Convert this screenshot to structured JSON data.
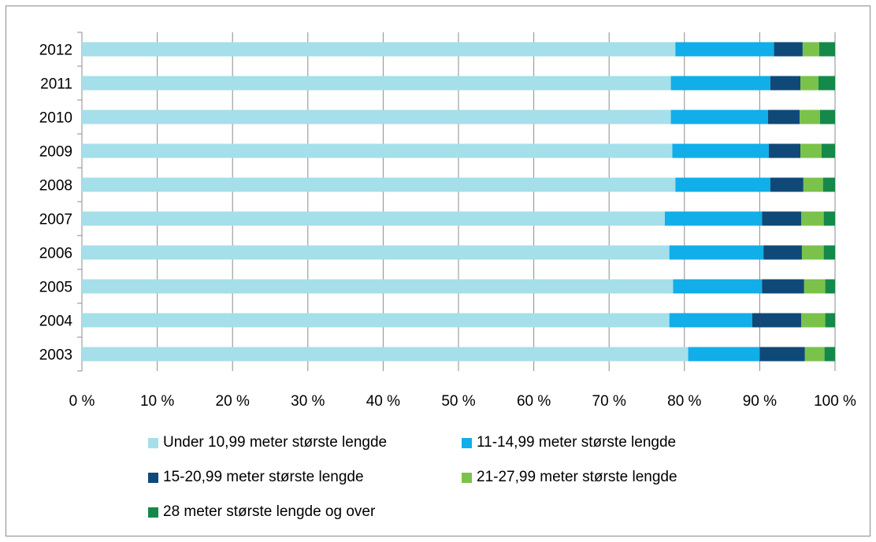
{
  "chart_data": {
    "type": "bar",
    "orientation": "horizontal",
    "stacked": "percent",
    "title": "",
    "xlabel": "",
    "ylabel": "",
    "xlim": [
      0,
      100
    ],
    "x_ticks": [
      "0 %",
      "10 %",
      "20 %",
      "30 %",
      "40 %",
      "50 %",
      "60 %",
      "70 %",
      "80 %",
      "90 %",
      "100 %"
    ],
    "categories": [
      "2012",
      "2011",
      "2010",
      "2009",
      "2008",
      "2007",
      "2006",
      "2005",
      "2004",
      "2003"
    ],
    "grid": "vertical",
    "legend_position": "bottom",
    "series": [
      {
        "name": "Under 10,99 meter største lengde",
        "color": "#a5dfe9",
        "values": [
          78.8,
          78.2,
          78.2,
          78.4,
          78.8,
          77.4,
          78.0,
          78.5,
          78.0,
          80.5
        ]
      },
      {
        "name": "11-14,99 meter største lengde",
        "color": "#11aee9",
        "values": [
          13.1,
          13.2,
          12.9,
          12.8,
          12.6,
          12.9,
          12.5,
          11.8,
          11.0,
          9.5
        ]
      },
      {
        "name": "15-20,99 meter største lengde",
        "color": "#0f4977",
        "values": [
          3.8,
          4.0,
          4.2,
          4.2,
          4.4,
          5.2,
          5.1,
          5.6,
          6.5,
          6.0
        ]
      },
      {
        "name": "21-27,99 meter største lengde",
        "color": "#7bc24a",
        "values": [
          2.2,
          2.4,
          2.7,
          2.8,
          2.6,
          3.0,
          2.9,
          2.8,
          3.2,
          2.6
        ]
      },
      {
        "name": "28 meter største lengde og over",
        "color": "#15894a",
        "values": [
          2.1,
          2.2,
          2.0,
          1.8,
          1.6,
          1.5,
          1.5,
          1.3,
          1.3,
          1.4
        ]
      }
    ]
  }
}
